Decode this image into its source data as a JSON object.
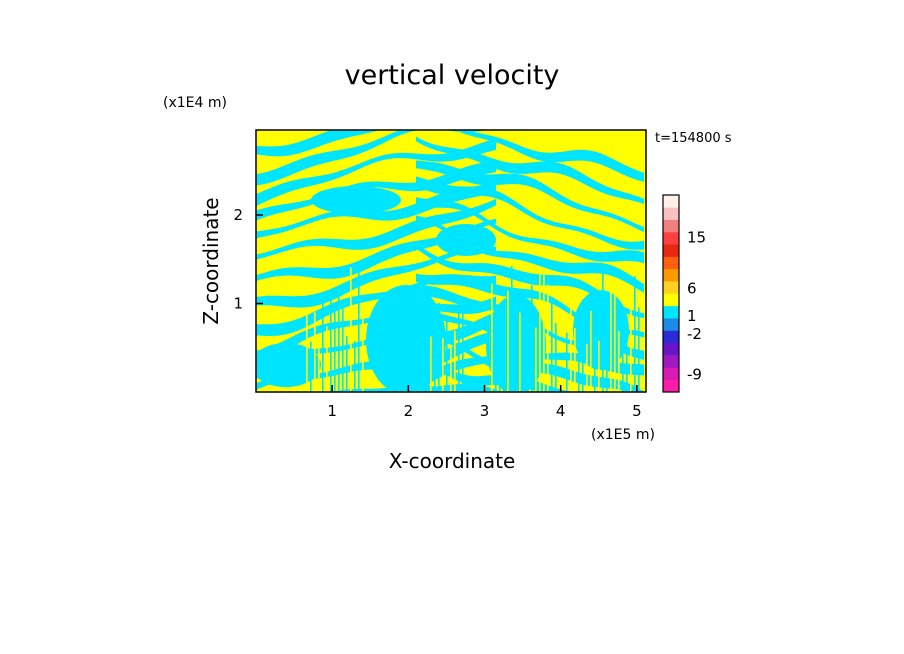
{
  "chart_data": {
    "type": "heatmap",
    "title": "vertical velocity",
    "xlabel": "X-coordinate",
    "ylabel": "Z-coordinate",
    "x_unit": "(x1E5 m)",
    "y_unit": "(x1E4 m)",
    "time_label": "t=154800 s",
    "x_range": [
      0,
      5.12
    ],
    "y_range": [
      0,
      2.96
    ],
    "x_ticks": [
      1,
      2,
      3,
      4,
      5
    ],
    "y_ticks": [
      1,
      2
    ],
    "legend_placement": "right",
    "colorbar": {
      "levels": [
        {
          "color": "#ff1aa8"
        },
        {
          "color": "#d81ab4"
        },
        {
          "color": "#a018c0"
        },
        {
          "color": "#6a14c8"
        },
        {
          "color": "#2b2cd6"
        },
        {
          "color": "#1a8ce8"
        },
        {
          "color": "#00e5ff"
        },
        {
          "color": "#ffff00"
        },
        {
          "color": "#ffd21e"
        },
        {
          "color": "#ff9900"
        },
        {
          "color": "#ff6010"
        },
        {
          "color": "#e82810"
        },
        {
          "color": "#ff4040"
        },
        {
          "color": "#f08080"
        },
        {
          "color": "#f8c0c0"
        },
        {
          "color": "#fff0ea"
        }
      ],
      "labels": [
        {
          "text": "-9",
          "pos": 0.09
        },
        {
          "text": "-2",
          "pos": 0.295
        },
        {
          "text": "1",
          "pos": 0.385
        },
        {
          "text": "6",
          "pos": 0.525
        },
        {
          "text": "15",
          "pos": 0.785
        }
      ]
    },
    "field_colors": {
      "positive": "#ffff00",
      "negative": "#00e5ff"
    }
  }
}
